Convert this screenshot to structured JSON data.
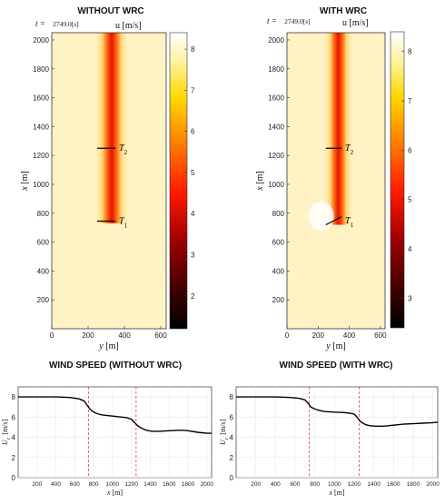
{
  "chart_data": [
    {
      "type": "heatmap",
      "title": "WITHOUT WRC",
      "time_label": "t =",
      "time_value": "2749.0[s]",
      "colorbar_label": "u [m/s]",
      "xlabel": "y [m]",
      "ylabel": "x [m]",
      "xlim": [
        0,
        630
      ],
      "ylim": [
        0,
        2050
      ],
      "xticks": [
        "0",
        "200",
        "400",
        "600"
      ],
      "yticks": [
        "200",
        "400",
        "600",
        "800",
        "1000",
        "1200",
        "1400",
        "1600",
        "1800",
        "2000"
      ],
      "clim": [
        1.2,
        8.4
      ],
      "colorbar_ticks": [
        "2",
        "3",
        "4",
        "5",
        "6",
        "7",
        "8"
      ],
      "turbines": [
        {
          "label": "T1",
          "x": 745,
          "y_from": 250,
          "y_to": 350,
          "x_to": 745
        },
        {
          "label": "T2",
          "x": 1250,
          "y_from": 250,
          "y_to": 350,
          "x_to": 1250
        }
      ]
    },
    {
      "type": "heatmap",
      "title": "WITH WRC",
      "time_label": "t =",
      "time_value": "2749.0[s]",
      "colorbar_label": "u [m/s]",
      "xlabel": "y [m]",
      "ylabel": "x [m]",
      "xlim": [
        0,
        630
      ],
      "ylim": [
        0,
        2050
      ],
      "xticks": [
        "0",
        "200",
        "400",
        "600"
      ],
      "yticks": [
        "200",
        "400",
        "600",
        "800",
        "1000",
        "1200",
        "1400",
        "1600",
        "1800",
        "2000"
      ],
      "clim": [
        2.4,
        8.4
      ],
      "colorbar_ticks": [
        "3",
        "4",
        "5",
        "6",
        "7",
        "8"
      ],
      "turbines": [
        {
          "label": "T1",
          "x": 720,
          "y_from": 250,
          "y_to": 350,
          "x_to": 775
        },
        {
          "label": "T2",
          "x": 1250,
          "y_from": 250,
          "y_to": 350,
          "x_to": 1250
        }
      ]
    },
    {
      "type": "line",
      "title": "WIND SPEED (WITHOUT WRC)",
      "xlabel": "x [m]",
      "ylabel": "U_c [m/s]",
      "xlim": [
        0,
        2050
      ],
      "ylim": [
        0,
        9
      ],
      "xticks": [
        "200",
        "400",
        "600",
        "800",
        "1000",
        "1200",
        "1400",
        "1600",
        "1800",
        "2000"
      ],
      "yticks": [
        "0",
        "2",
        "4",
        "6",
        "8"
      ],
      "grid": true,
      "vlines": [
        745,
        1250
      ],
      "x": [
        0,
        200,
        400,
        550,
        650,
        700,
        730,
        760,
        800,
        850,
        900,
        1000,
        1100,
        1150,
        1200,
        1230,
        1260,
        1290,
        1320,
        1360,
        1420,
        1500,
        1600,
        1700,
        1750,
        1800,
        1900,
        2000,
        2050
      ],
      "y": [
        8.0,
        8.0,
        8.0,
        7.95,
        7.8,
        7.6,
        7.2,
        6.8,
        6.5,
        6.3,
        6.2,
        6.1,
        6.0,
        5.95,
        5.8,
        5.5,
        5.2,
        5.0,
        4.85,
        4.7,
        4.6,
        4.6,
        4.65,
        4.7,
        4.7,
        4.65,
        4.5,
        4.4,
        4.4
      ]
    },
    {
      "type": "line",
      "title": "WIND SPEED (WITH WRC)",
      "xlabel": "x [m]",
      "ylabel": "U_c [m/s]",
      "xlim": [
        0,
        2050
      ],
      "ylim": [
        0,
        9
      ],
      "xticks": [
        "200",
        "400",
        "600",
        "800",
        "1000",
        "1200",
        "1400",
        "1600",
        "1800",
        "2000"
      ],
      "yticks": [
        "0",
        "2",
        "4",
        "6",
        "8"
      ],
      "grid": true,
      "vlines": [
        745,
        1250
      ],
      "x": [
        0,
        200,
        400,
        550,
        650,
        700,
        730,
        760,
        800,
        850,
        900,
        1000,
        1100,
        1150,
        1200,
        1230,
        1260,
        1290,
        1320,
        1360,
        1420,
        1500,
        1600,
        1700,
        1800,
        1900,
        2000,
        2050
      ],
      "y": [
        8.0,
        8.0,
        8.0,
        7.95,
        7.85,
        7.7,
        7.4,
        7.0,
        6.8,
        6.65,
        6.55,
        6.5,
        6.45,
        6.4,
        6.3,
        6.0,
        5.6,
        5.4,
        5.25,
        5.15,
        5.1,
        5.1,
        5.2,
        5.3,
        5.35,
        5.4,
        5.45,
        5.5
      ]
    }
  ]
}
